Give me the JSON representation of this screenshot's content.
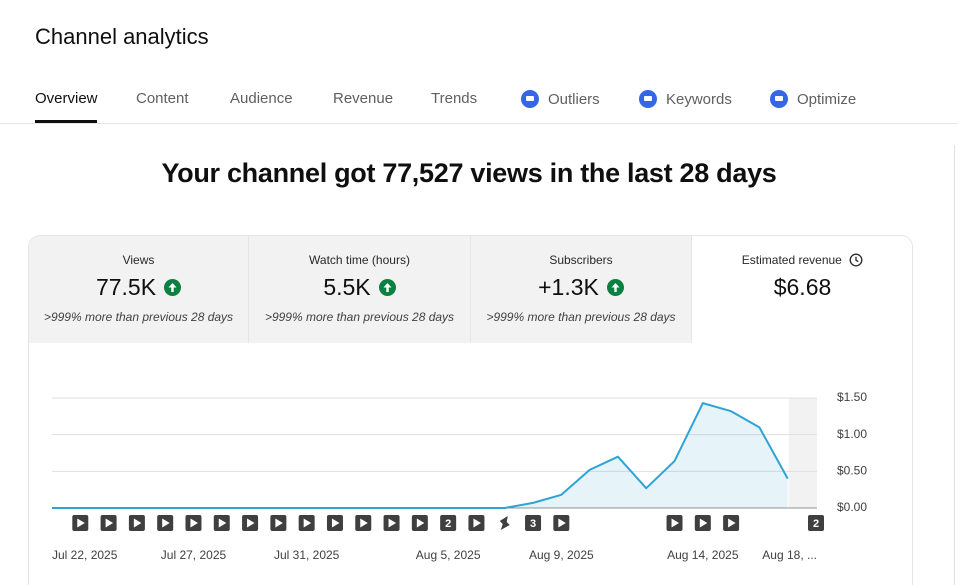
{
  "header": {
    "title": "Channel analytics"
  },
  "tabs": [
    {
      "label": "Overview",
      "selected": true
    },
    {
      "label": "Content"
    },
    {
      "label": "Audience"
    },
    {
      "label": "Revenue"
    },
    {
      "label": "Trends"
    },
    {
      "label": "Outliers",
      "icon": true
    },
    {
      "label": "Keywords",
      "icon": true
    },
    {
      "label": "Optimize",
      "icon": true
    }
  ],
  "headline": "Your channel got 77,527 views in the last 28 days",
  "cards": [
    {
      "title": "Views",
      "value": "77.5K",
      "note": ">999% more than previous 28 days",
      "trend": "up"
    },
    {
      "title": "Watch time (hours)",
      "value": "5.5K",
      "note": ">999% more than previous 28 days",
      "trend": "up"
    },
    {
      "title": "Subscribers",
      "value": "+1.3K",
      "note": ">999% more than previous 28 days",
      "trend": "up"
    },
    {
      "title": "Estimated revenue",
      "value": "$6.68",
      "selected": true
    }
  ],
  "chart_data": {
    "type": "area",
    "categories": [
      "Jul 22, 2025",
      null,
      null,
      null,
      null,
      "Jul 27, 2025",
      null,
      null,
      null,
      "Jul 31, 2025",
      null,
      null,
      null,
      null,
      "Aug 5, 2025",
      null,
      null,
      null,
      "Aug 9, 2025",
      null,
      null,
      null,
      null,
      "Aug 14, 2025",
      null,
      null,
      null,
      "Aug 18, ..."
    ],
    "series": [
      {
        "name": "Estimated revenue",
        "color": "#2ea3d6",
        "values": [
          0,
          0,
          0,
          0,
          0,
          0,
          0,
          0,
          0,
          0,
          0,
          0,
          0,
          0,
          0,
          0,
          0,
          0.07,
          0.18,
          0.52,
          0.7,
          0.27,
          0.64,
          1.43,
          1.32,
          1.1,
          0.4,
          null
        ]
      }
    ],
    "ylim": [
      0,
      1.5
    ],
    "yticks": [
      {
        "value": 0,
        "label": "$0.00"
      },
      {
        "value": 0.5,
        "label": "$0.50"
      },
      {
        "value": 1,
        "label": "$1.00"
      },
      {
        "value": 1.5,
        "label": "$1.50"
      }
    ],
    "grid": true,
    "markers": [
      null,
      "video",
      "video",
      "video",
      "video",
      "video",
      "video",
      "video",
      "video",
      "video",
      "video",
      "video",
      "video",
      "video",
      "2",
      "video",
      "short",
      "3",
      "video",
      null,
      null,
      null,
      "video",
      "video",
      "video",
      null,
      null,
      "2"
    ]
  }
}
